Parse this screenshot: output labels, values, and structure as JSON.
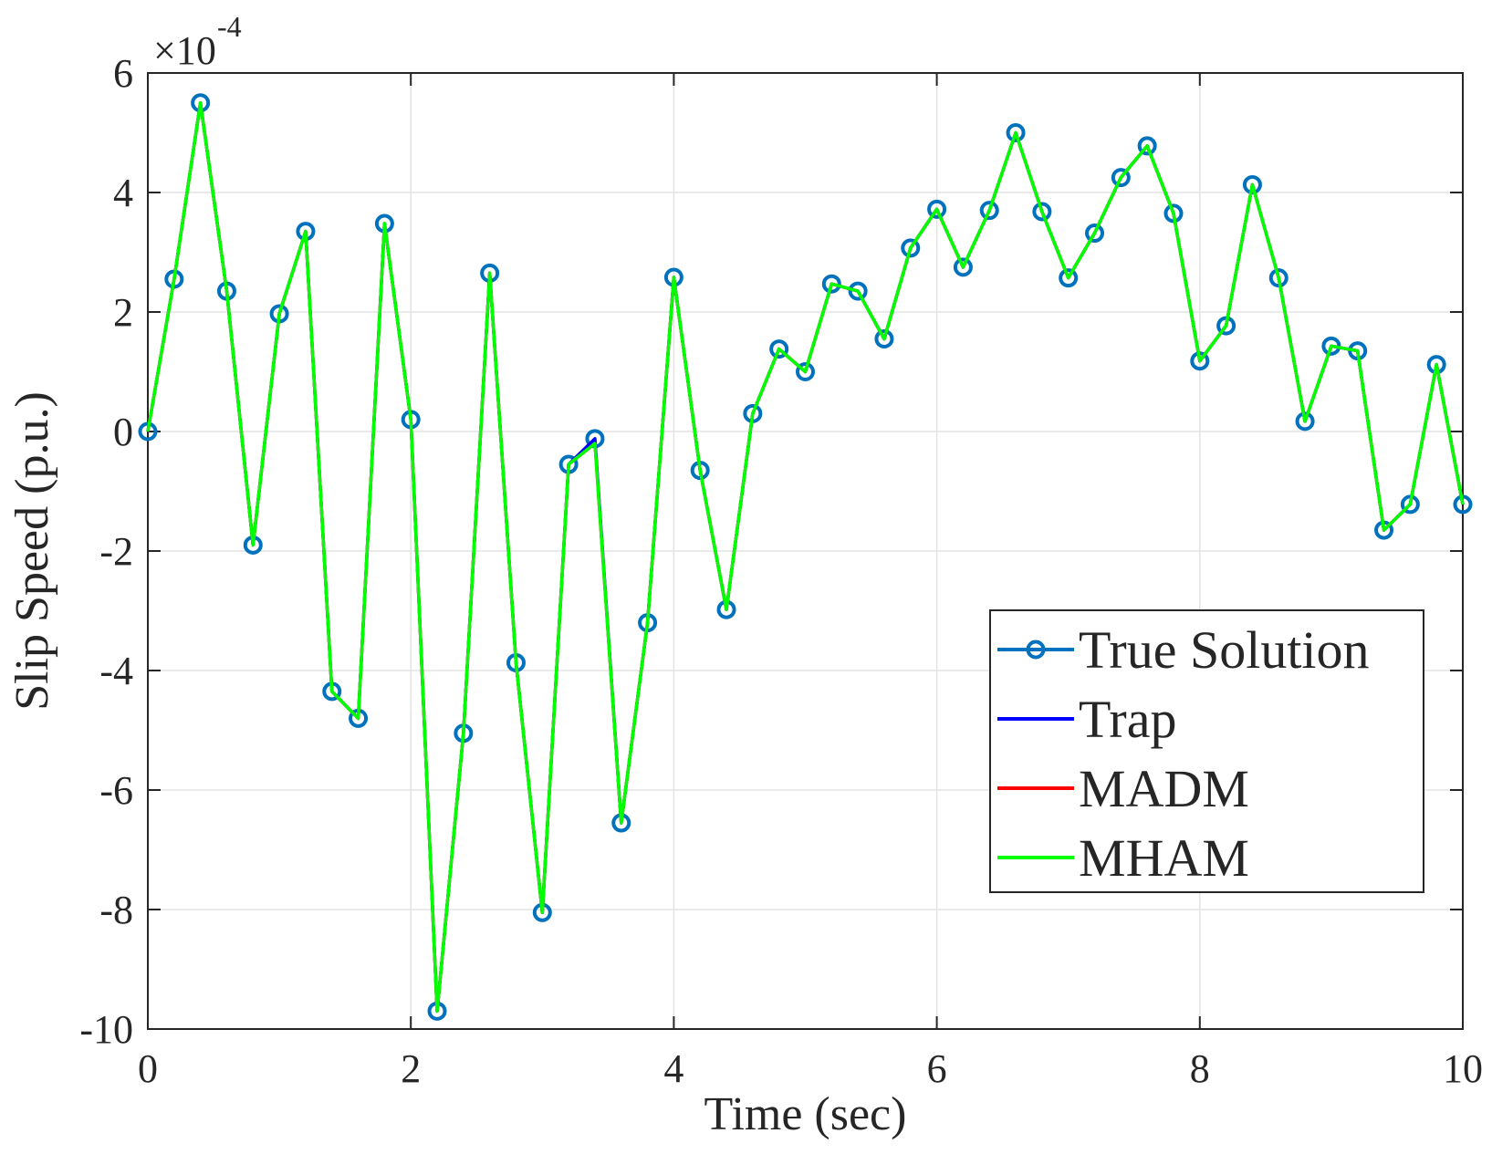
{
  "chart_data": {
    "type": "line",
    "title": "",
    "xlabel": "Time (sec)",
    "ylabel": "Slip Speed (p.u.)",
    "y_exponent_label": "×10",
    "y_exponent_value": "-4",
    "xlim": [
      0,
      10
    ],
    "ylim": [
      -10,
      6
    ],
    "xticks": [
      0,
      2,
      4,
      6,
      8,
      10
    ],
    "yticks": [
      -10,
      -8,
      -6,
      -4,
      -2,
      0,
      2,
      4,
      6
    ],
    "grid": true,
    "legend_position": "lower-right",
    "x": [
      0,
      0.2,
      0.4,
      0.6,
      0.8,
      1.0,
      1.2,
      1.4,
      1.6,
      1.8,
      2.0,
      2.2,
      2.4,
      2.6,
      2.8,
      3.0,
      3.2,
      3.4,
      3.6,
      3.8,
      4.0,
      4.2,
      4.4,
      4.6,
      4.8,
      5.0,
      5.2,
      5.4,
      5.6,
      5.8,
      6.0,
      6.2,
      6.4,
      6.6,
      6.8,
      7.0,
      7.2,
      7.4,
      7.6,
      7.8,
      8.0,
      8.2,
      8.4,
      8.6,
      8.8,
      9.0,
      9.2,
      9.4,
      9.6,
      9.8,
      10.0
    ],
    "series": [
      {
        "name": "True Solution",
        "color": "#0072BD",
        "marker": "circle",
        "values": [
          0,
          2.55,
          5.5,
          2.35,
          -1.9,
          1.97,
          3.35,
          -4.35,
          -4.8,
          3.48,
          0.2,
          -9.7,
          -5.05,
          2.65,
          -3.87,
          -8.05,
          -0.55,
          -0.12,
          -6.55,
          -3.2,
          2.58,
          -0.65,
          -2.98,
          0.3,
          1.38,
          1.0,
          2.47,
          2.35,
          1.55,
          3.07,
          3.72,
          2.75,
          3.7,
          5.0,
          3.68,
          2.57,
          3.32,
          4.25,
          4.78,
          3.65,
          1.18,
          1.77,
          4.13,
          2.57,
          0.17,
          1.43,
          1.35,
          -1.65,
          -1.22,
          1.12,
          -1.22
        ]
      },
      {
        "name": "Trap",
        "color": "#0000FF",
        "marker": "none",
        "values": [
          0,
          2.55,
          5.5,
          2.35,
          -1.9,
          1.97,
          3.35,
          -4.35,
          -4.8,
          3.48,
          0.2,
          -9.7,
          -5.05,
          2.65,
          -3.87,
          -8.05,
          -0.55,
          -0.12,
          -6.55,
          -3.2,
          2.58,
          -0.65,
          -2.98,
          0.3,
          1.38,
          1.0,
          2.47,
          2.35,
          1.55,
          3.07,
          3.72,
          2.75,
          3.7,
          5.0,
          3.68,
          2.57,
          3.32,
          4.25,
          4.78,
          3.65,
          1.18,
          1.77,
          4.13,
          2.57,
          0.17,
          1.43,
          1.35,
          -1.65,
          -1.22,
          1.12,
          -1.22
        ]
      },
      {
        "name": "MADM",
        "color": "#FF0000",
        "marker": "none",
        "values": [
          0,
          2.55,
          5.5,
          2.35,
          -1.9,
          1.97,
          3.35,
          -4.35,
          -4.8,
          3.48,
          0.2,
          -9.7,
          -5.05,
          2.65,
          -3.87,
          -8.05,
          -0.55,
          -0.2,
          -6.55,
          -3.2,
          2.58,
          -0.65,
          -2.98,
          0.3,
          1.38,
          1.0,
          2.47,
          2.35,
          1.55,
          3.07,
          3.72,
          2.75,
          3.7,
          5.0,
          3.68,
          2.57,
          3.32,
          4.25,
          4.78,
          3.65,
          1.18,
          1.77,
          4.13,
          2.57,
          0.17,
          1.43,
          1.35,
          -1.65,
          -1.22,
          1.12,
          -1.22
        ]
      },
      {
        "name": "MHAM",
        "color": "#00FF00",
        "marker": "none",
        "values": [
          0,
          2.55,
          5.5,
          2.35,
          -1.9,
          1.97,
          3.35,
          -4.35,
          -4.8,
          3.48,
          0.2,
          -9.7,
          -5.05,
          2.65,
          -3.87,
          -8.05,
          -0.55,
          -0.2,
          -6.55,
          -3.2,
          2.58,
          -0.65,
          -2.98,
          0.3,
          1.38,
          1.0,
          2.47,
          2.35,
          1.55,
          3.07,
          3.72,
          2.75,
          3.7,
          5.0,
          3.68,
          2.57,
          3.32,
          4.25,
          4.78,
          3.65,
          1.18,
          1.77,
          4.13,
          2.57,
          0.17,
          1.43,
          1.35,
          -1.65,
          -1.22,
          1.12,
          -1.22
        ]
      }
    ]
  }
}
